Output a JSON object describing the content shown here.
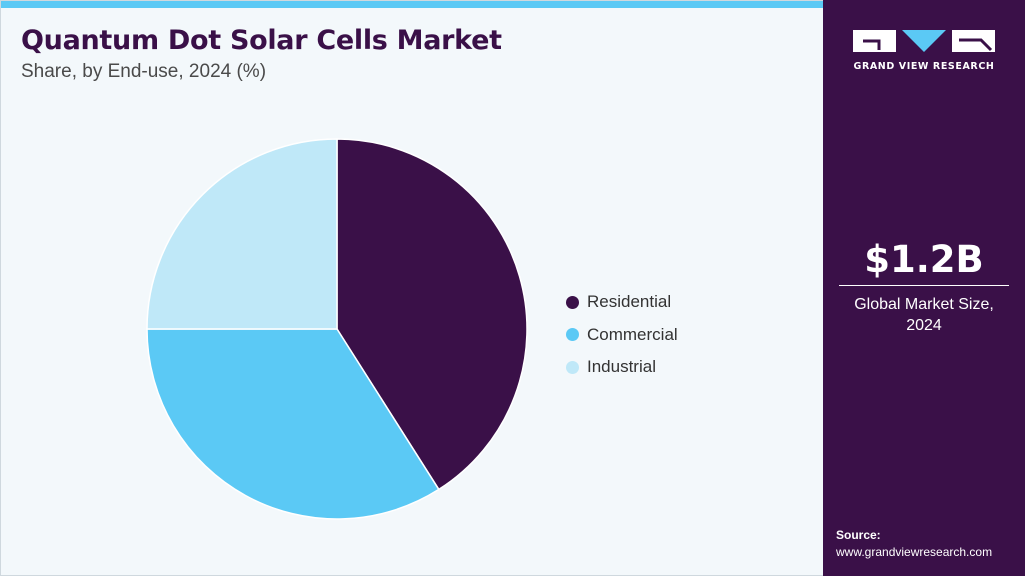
{
  "header": {
    "title": "Quantum Dot Solar Cells Market",
    "subtitle": "Share, by End-use, 2024 (%)"
  },
  "colors": {
    "accent_bar": "#5bc9f5",
    "panel": "#3a1048",
    "background": "#f3f8fb"
  },
  "chart_data": {
    "type": "pie",
    "categories": [
      "Residential",
      "Commercial",
      "Industrial"
    ],
    "values": [
      41,
      34,
      25
    ],
    "colors": [
      "#3a1048",
      "#5bc9f5",
      "#bfe8f8"
    ],
    "start_angle_deg": 0,
    "direction": "clockwise",
    "legend_position": "right"
  },
  "side_panel": {
    "logo_icon": "gvr-logo-icon",
    "logo_text": "GRAND VIEW RESEARCH",
    "market_value": "$1.2B",
    "market_label_line1": "Global Market Size,",
    "market_label_line2": "2024",
    "source_title": "Source:",
    "source_url": "www.grandviewresearch.com"
  }
}
